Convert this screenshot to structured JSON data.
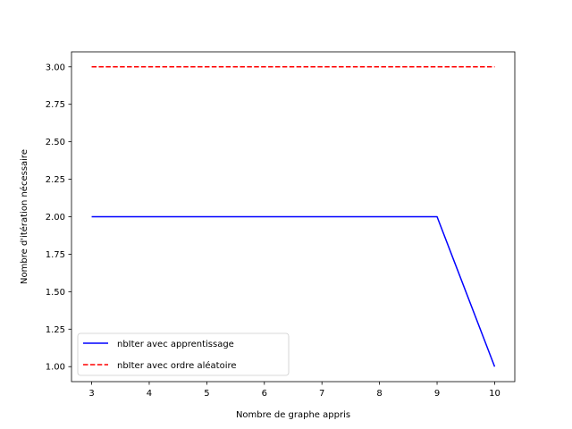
{
  "chart_data": {
    "type": "line",
    "title": "",
    "xlabel": "Nombre de graphe appris",
    "ylabel": "Nombre d'itération nécessaire",
    "xlim": [
      2.65,
      10.35
    ],
    "ylim": [
      0.9,
      3.1
    ],
    "xticks": [
      3,
      4,
      5,
      6,
      7,
      8,
      9,
      10
    ],
    "yticks": [
      1.0,
      1.25,
      1.5,
      1.75,
      2.0,
      2.25,
      2.5,
      2.75,
      3.0
    ],
    "ytick_labels": [
      "1.00",
      "1.25",
      "1.50",
      "1.75",
      "2.00",
      "2.25",
      "2.50",
      "2.75",
      "3.00"
    ],
    "legend_position": "lower-left",
    "series": [
      {
        "name": "nbIter avec apprentissage",
        "color": "#0000ff",
        "style": "solid",
        "x": [
          3,
          4,
          5,
          6,
          7,
          8,
          9,
          10
        ],
        "y": [
          2,
          2,
          2,
          2,
          2,
          2,
          2,
          1
        ]
      },
      {
        "name": "nbIter avec ordre aléatoire",
        "color": "#ff0000",
        "style": "dashed",
        "x": [
          3,
          4,
          5,
          6,
          7,
          8,
          9,
          10
        ],
        "y": [
          3,
          3,
          3,
          3,
          3,
          3,
          3,
          3
        ]
      }
    ]
  }
}
